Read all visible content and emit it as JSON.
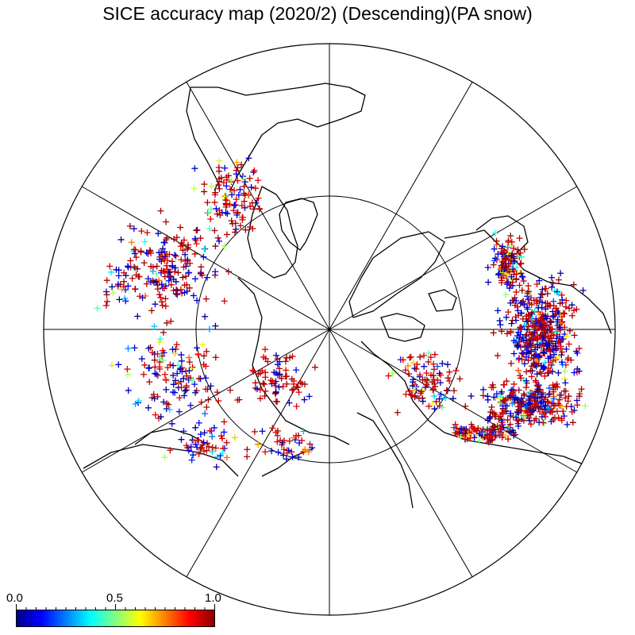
{
  "title": "SICE accuracy map (2020/2) (Descending)(PA snow)",
  "colorbar": {
    "min_label": "0.0",
    "mid_label": "0.5",
    "max_label": "1.0",
    "colors": [
      "#00008b",
      "#0000ff",
      "#0080ff",
      "#00ffff",
      "#80ff80",
      "#ffff00",
      "#ff8000",
      "#ff0000",
      "#8b0000"
    ]
  },
  "map": {
    "projection": "north-polar-stereographic",
    "meridian_spokes_deg": 30,
    "latitude_circle": "inner circle",
    "marker": "+"
  }
}
